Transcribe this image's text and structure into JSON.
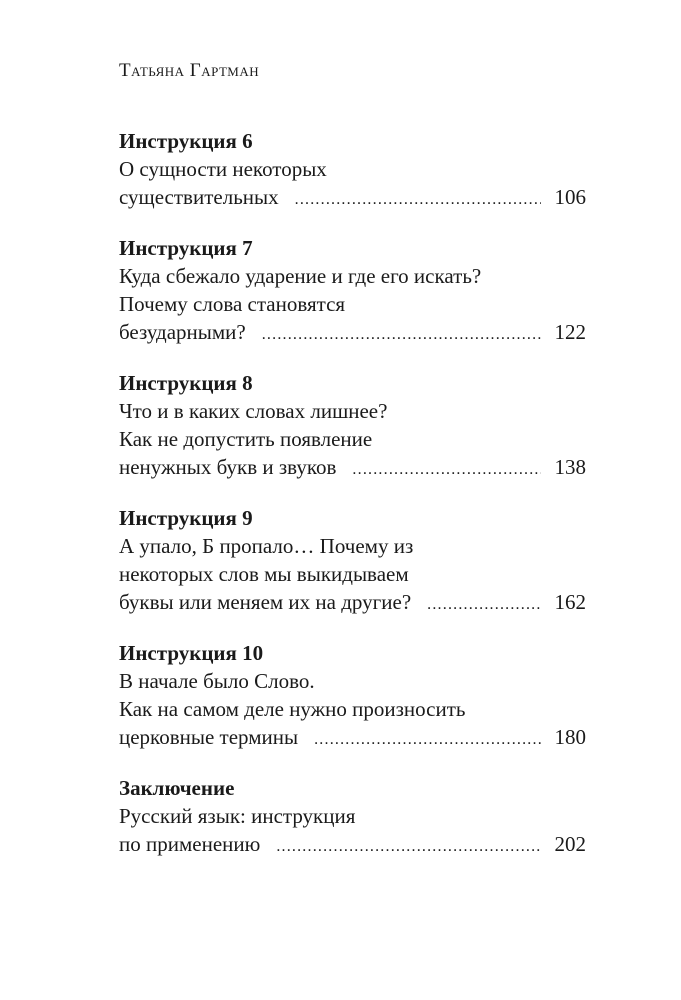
{
  "header": {
    "author": "Татьяна Гартман"
  },
  "toc": [
    {
      "heading": "Инструкция 6",
      "lines": [
        "О сущности некоторых",
        "существительных"
      ],
      "page": "106"
    },
    {
      "heading": "Инструкция 7",
      "lines": [
        "Куда сбежало ударение и где его искать?",
        "Почему слова становятся",
        "безударными?"
      ],
      "page": "122"
    },
    {
      "heading": "Инструкция 8",
      "lines": [
        "Что и в каких словах лишнее?",
        "Как не допустить появление",
        "ненужных букв и звуков"
      ],
      "page": "138"
    },
    {
      "heading": "Инструкция 9",
      "lines": [
        "А упало, Б пропало… Почему из",
        "некоторых слов мы выкидываем",
        "буквы или меняем их на другие?"
      ],
      "page": "162"
    },
    {
      "heading": "Инструкция 10",
      "lines": [
        "В начале было Слово.",
        "Как на самом деле нужно произносить",
        "церковные термины"
      ],
      "page": "180"
    },
    {
      "heading": "Заключение",
      "lines": [
        "Русский язык: инструкция",
        "по применению"
      ],
      "page": "202"
    }
  ]
}
